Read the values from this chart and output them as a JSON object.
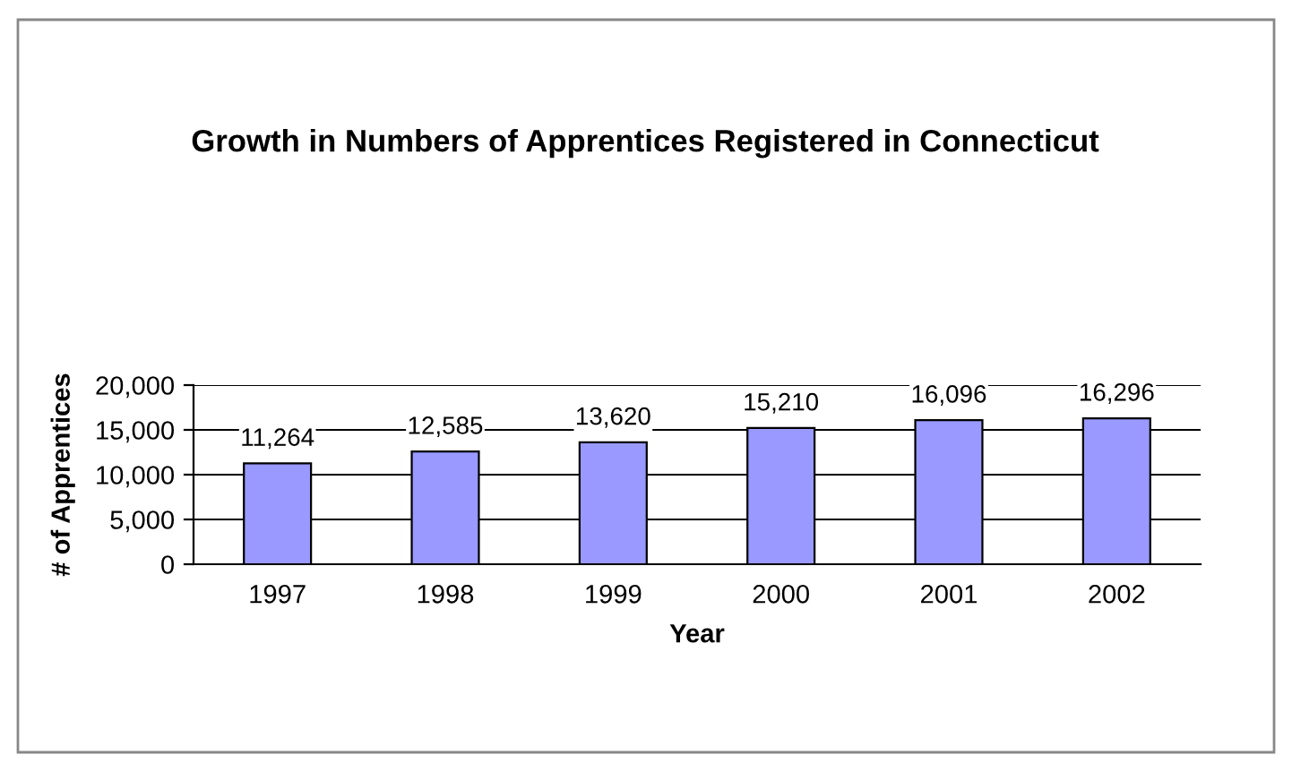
{
  "chart_data": {
    "type": "bar",
    "title": "Growth in Numbers of Apprentices Registered in Connecticut",
    "xlabel": "Year",
    "ylabel": "# of Apprentices",
    "categories": [
      "1997",
      "1998",
      "1999",
      "2000",
      "2001",
      "2002"
    ],
    "values": [
      11264,
      12585,
      13620,
      15210,
      16096,
      16296
    ],
    "value_labels": [
      "11,264",
      "12,585",
      "13,620",
      "15,210",
      "16,096",
      "16,296"
    ],
    "color": "#9999ff",
    "grid": "y",
    "ylim": [
      0,
      20000
    ],
    "yticks": [
      0,
      {
        "value": 5000,
        "label": "5,000"
      },
      {
        "value": 10000,
        "label": "10,000"
      },
      {
        "value": 15000,
        "label": "15,000"
      },
      {
        "value": 20000,
        "label": "20,000"
      }
    ]
  }
}
